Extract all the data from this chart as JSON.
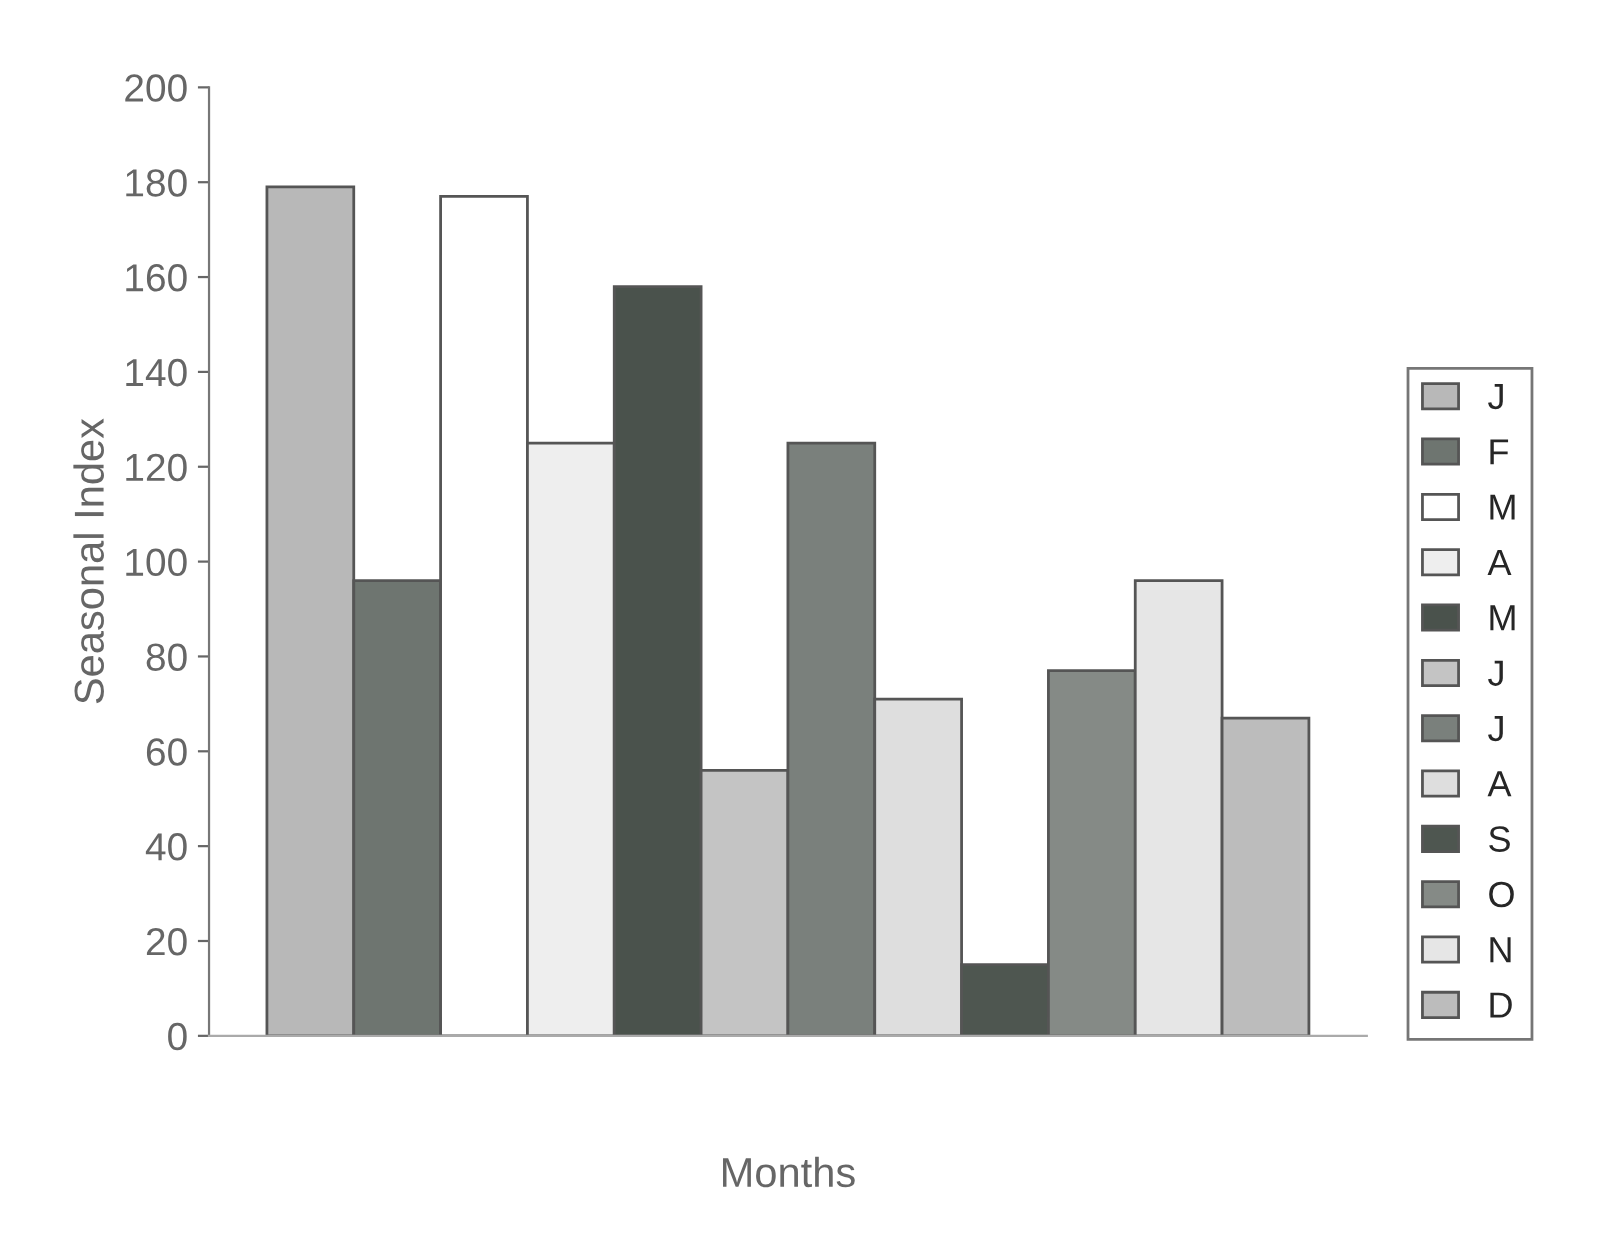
{
  "chart_data": {
    "type": "bar",
    "xlabel": "Months",
    "ylabel": "Seasonal Index",
    "categories": [
      null
    ],
    "series": [
      {
        "name": "J",
        "color": "#b8b8b8",
        "values": [
          179
        ]
      },
      {
        "name": "F",
        "color": "#6e7570",
        "values": [
          96
        ]
      },
      {
        "name": "M",
        "color": "#ffffff",
        "values": [
          177
        ]
      },
      {
        "name": "A",
        "color": "#eeeeee",
        "values": [
          125
        ]
      },
      {
        "name": "M",
        "color": "#4a524c",
        "values": [
          158
        ]
      },
      {
        "name": "J",
        "color": "#c4c4c4",
        "values": [
          56
        ]
      },
      {
        "name": "J",
        "color": "#7a807c",
        "values": [
          125
        ]
      },
      {
        "name": "A",
        "color": "#dedede",
        "values": [
          71
        ]
      },
      {
        "name": "S",
        "color": "#4e5650",
        "values": [
          15
        ]
      },
      {
        "name": "O",
        "color": "#858a86",
        "values": [
          77
        ]
      },
      {
        "name": "N",
        "color": "#e6e6e6",
        "values": [
          96
        ]
      },
      {
        "name": "D",
        "color": "#bcbcbc",
        "values": [
          67
        ]
      }
    ],
    "ylim": [
      0,
      200
    ],
    "yticks": [
      0,
      20,
      40,
      60,
      80,
      100,
      120,
      140,
      160,
      180,
      200
    ],
    "legend": "right",
    "grid": false
  }
}
